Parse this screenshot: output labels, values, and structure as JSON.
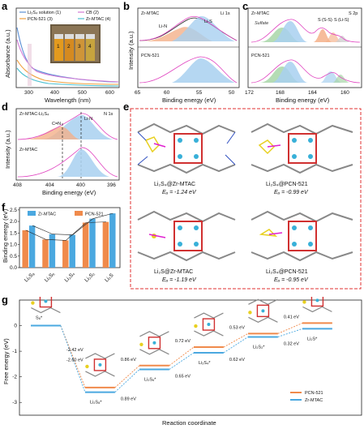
{
  "panels": {
    "a": {
      "letter": "a",
      "xlabel": "Wavelength (nm)",
      "ylabel": "Absorbance (a.u.)",
      "xticks": [
        "300",
        "400",
        "500",
        "600"
      ],
      "legend": [
        "Li₂S₄ solution (1)",
        "CB (2)",
        "PCN-521 (3)",
        "Zr-MTAC (4)"
      ],
      "vial_numbers": [
        "1",
        "2",
        "3",
        "4"
      ]
    },
    "b": {
      "letter": "b",
      "xlabel": "Binding energy (eV)",
      "ylabel": "Intensity (a.u.)",
      "xticks": [
        "60",
        "55",
        "50"
      ],
      "xticks_extra": [
        "65"
      ],
      "core_level": "Li 1s",
      "sample_top": "Zr-MTAC",
      "sample_bottom": "PCN-521",
      "peak_labels": [
        "Li-N",
        "Li-S"
      ]
    },
    "c": {
      "letter": "c",
      "xlabel": "Binding energy (eV)",
      "xticks": [
        "172",
        "168",
        "164",
        "160"
      ],
      "core_level": "S 2p",
      "sample_top": "Zr-MTAC",
      "sample_bottom": "PCN-521",
      "peak_labels": [
        "Sulfate",
        "S",
        "(S-S)",
        "S",
        "(Li-S)"
      ]
    },
    "d": {
      "letter": "d",
      "xlabel": "Binding energy (eV)",
      "ylabel": "Intensity (a.u.)",
      "xticks": [
        "408",
        "404",
        "400",
        "396"
      ],
      "core_level": "N 1s",
      "sample_top": "Zr-MTAC-Li₂S₄",
      "sample_bottom": "Zr-MTAC",
      "peak_labels": [
        "C=N",
        "Li-N"
      ]
    },
    "e": {
      "letter": "e",
      "structures": [
        {
          "label": "Li₂S₄@Zr-MTAC",
          "energy": "Eₐ = -1.24 eV"
        },
        {
          "label": "Li₂S₄@PCN-521",
          "energy": "Eₐ = -0.99 eV"
        },
        {
          "label": "Li₂S@Zr-MTAC",
          "energy": "Eₐ = -1.19 eV"
        },
        {
          "label": "Li₂S₄@PCN-521",
          "energy": "Eₐ = -0.95 eV"
        }
      ]
    },
    "f": {
      "letter": "f",
      "ylabel": "Binding energy (eV)",
      "yticks": [
        "0.0",
        "0.5",
        "1.0",
        "1.5",
        "2.0",
        "2.5"
      ],
      "legend": [
        "Zr-MTAC",
        "PCN-521"
      ]
    },
    "g": {
      "letter": "g",
      "ylabel": "Free energy (eV)",
      "xlabel": "Reaction coordinate",
      "yticks": [
        "0",
        "-1",
        "-2",
        "-3"
      ],
      "state_labels": [
        "S₈*",
        "Li₂S₈*",
        "Li₂S₆*",
        "Li₂S₄*",
        "Li₂S₂*",
        "Li₂S*"
      ],
      "step_labels_top": [
        "-2.42 eV",
        "0.86 eV",
        "0.72 eV",
        "0.53 eV",
        "0.41 eV"
      ],
      "step_labels_bottom": [
        "-2.60 eV",
        "0.89 eV",
        "0.65 eV",
        "0.62 eV",
        "0.32 eV"
      ],
      "legend": [
        "PCN-521",
        "Zr-MTAC"
      ]
    }
  },
  "colors": {
    "zr_mtac": "#4aa8e0",
    "pcn521": "#f08a4b",
    "li2s4_line": "#5b8fd6",
    "cb_line": "#d27ad6",
    "pcn_line_a": "#f0a040",
    "zr_line_a": "#4bc0d0",
    "frame_red": "#e03030"
  },
  "chart_data": [
    {
      "type": "bar",
      "panel": "f",
      "categories": [
        "Li₂S₈",
        "Li₂S₆",
        "Li₂S₄",
        "Li₂S₂",
        "Li₂S"
      ],
      "ylabel": "Binding energy (eV)",
      "ylim": [
        0,
        2.6
      ],
      "series": [
        {
          "name": "Zr-MTAC",
          "values": [
            1.82,
            1.45,
            1.42,
            2.12,
            2.35
          ]
        },
        {
          "name": "PCN-521",
          "values": [
            1.62,
            1.22,
            1.18,
            1.95,
            1.98
          ]
        }
      ]
    },
    {
      "type": "line",
      "panel": "g",
      "categories": [
        "S₈*",
        "Li₂S₈*",
        "Li₂S₆*",
        "Li₂S₄*",
        "Li₂S₂*",
        "Li₂S*"
      ],
      "ylabel": "Free energy (eV)",
      "xlabel": "Reaction coordinate",
      "series": [
        {
          "name": "PCN-521",
          "values": [
            0,
            -2.42,
            -1.56,
            -0.84,
            -0.31,
            0.1
          ]
        },
        {
          "name": "Zr-MTAC",
          "values": [
            0,
            -2.6,
            -1.71,
            -1.06,
            -0.44,
            -0.12
          ]
        }
      ]
    }
  ]
}
